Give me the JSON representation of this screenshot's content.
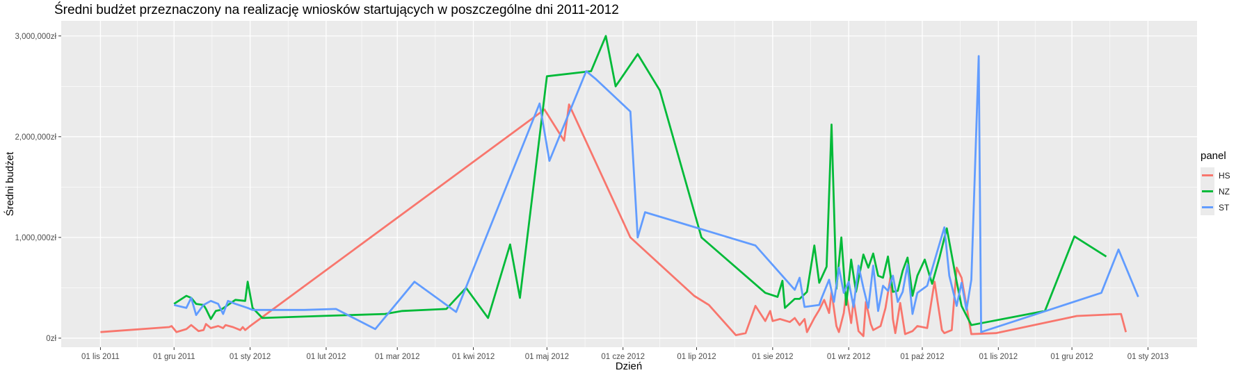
{
  "chart_data": {
    "type": "line",
    "title": "Średni budżet przeznaczony na realizację wniosków startujących w poszczególne dni 2011-2012",
    "xlabel": "Dzień",
    "ylabel": "Średni budżet",
    "ylim": [
      -90000,
      3150000
    ],
    "xlim": [
      "2011-10-16",
      "2013-01-21"
    ],
    "grid": true,
    "legend_title": "panel",
    "legend_position": "right",
    "x_ticks": [
      {
        "date": "2011-11-01",
        "label": "01 lis 2011"
      },
      {
        "date": "2011-12-01",
        "label": "01 gru 2011"
      },
      {
        "date": "2012-01-01",
        "label": "01 sty 2012"
      },
      {
        "date": "2012-02-01",
        "label": "01 lut 2012"
      },
      {
        "date": "2012-03-01",
        "label": "01 mar 2012"
      },
      {
        "date": "2012-04-01",
        "label": "01 kwi 2012"
      },
      {
        "date": "2012-05-01",
        "label": "01 maj 2012"
      },
      {
        "date": "2012-06-01",
        "label": "01 cze 2012"
      },
      {
        "date": "2012-07-01",
        "label": "01 lip 2012"
      },
      {
        "date": "2012-08-01",
        "label": "01 sie 2012"
      },
      {
        "date": "2012-09-01",
        "label": "01 wrz 2012"
      },
      {
        "date": "2012-10-01",
        "label": "01 paź 2012"
      },
      {
        "date": "2012-11-01",
        "label": "01 lis 2012"
      },
      {
        "date": "2012-12-01",
        "label": "01 gru 2012"
      },
      {
        "date": "2013-01-01",
        "label": "01 sty 2013"
      }
    ],
    "y_ticks": [
      {
        "value": 0,
        "label": "0zł"
      },
      {
        "value": 1000000,
        "label": "1,000,000zł"
      },
      {
        "value": 2000000,
        "label": "2,000,000zł"
      },
      {
        "value": 3000000,
        "label": "3,000,000zł"
      }
    ],
    "series": [
      {
        "name": "HS",
        "color": "#F8766D",
        "points": [
          [
            "2011-11-01",
            60000
          ],
          [
            "2011-11-29",
            110000
          ],
          [
            "2011-11-30",
            120000
          ],
          [
            "2011-12-02",
            60000
          ],
          [
            "2011-12-06",
            90000
          ],
          [
            "2011-12-08",
            130000
          ],
          [
            "2011-12-11",
            70000
          ],
          [
            "2011-12-13",
            80000
          ],
          [
            "2011-12-14",
            140000
          ],
          [
            "2011-12-16",
            100000
          ],
          [
            "2011-12-19",
            120000
          ],
          [
            "2011-12-21",
            100000
          ],
          [
            "2011-12-22",
            130000
          ],
          [
            "2011-12-25",
            110000
          ],
          [
            "2011-12-28",
            80000
          ],
          [
            "2011-12-29",
            110000
          ],
          [
            "2011-12-30",
            80000
          ],
          [
            "2012-01-01",
            120000
          ],
          [
            "2012-04-30",
            2270000
          ],
          [
            "2012-05-08",
            1960000
          ],
          [
            "2012-05-10",
            2320000
          ],
          [
            "2012-06-04",
            1000000
          ],
          [
            "2012-06-30",
            420000
          ],
          [
            "2012-07-06",
            330000
          ],
          [
            "2012-07-17",
            30000
          ],
          [
            "2012-07-21",
            50000
          ],
          [
            "2012-07-25",
            320000
          ],
          [
            "2012-07-29",
            170000
          ],
          [
            "2012-07-31",
            270000
          ],
          [
            "2012-08-01",
            170000
          ],
          [
            "2012-08-04",
            190000
          ],
          [
            "2012-08-08",
            160000
          ],
          [
            "2012-08-10",
            200000
          ],
          [
            "2012-08-12",
            130000
          ],
          [
            "2012-08-14",
            190000
          ],
          [
            "2012-08-15",
            60000
          ],
          [
            "2012-08-18",
            200000
          ],
          [
            "2012-08-20",
            280000
          ],
          [
            "2012-08-22",
            380000
          ],
          [
            "2012-08-24",
            250000
          ],
          [
            "2012-08-25",
            460000
          ],
          [
            "2012-08-27",
            120000
          ],
          [
            "2012-08-28",
            60000
          ],
          [
            "2012-08-30",
            250000
          ],
          [
            "2012-08-31",
            450000
          ],
          [
            "2012-09-02",
            150000
          ],
          [
            "2012-09-03",
            380000
          ],
          [
            "2012-09-05",
            70000
          ],
          [
            "2012-09-07",
            20000
          ],
          [
            "2012-09-08",
            360000
          ],
          [
            "2012-09-10",
            140000
          ],
          [
            "2012-09-11",
            80000
          ],
          [
            "2012-09-14",
            120000
          ],
          [
            "2012-09-16",
            300000
          ],
          [
            "2012-09-18",
            600000
          ],
          [
            "2012-09-19",
            190000
          ],
          [
            "2012-09-20",
            50000
          ],
          [
            "2012-09-22",
            350000
          ],
          [
            "2012-09-24",
            40000
          ],
          [
            "2012-09-27",
            70000
          ],
          [
            "2012-09-29",
            120000
          ],
          [
            "2012-10-03",
            100000
          ],
          [
            "2012-10-06",
            560000
          ],
          [
            "2012-10-09",
            80000
          ],
          [
            "2012-10-10",
            50000
          ],
          [
            "2012-10-13",
            80000
          ],
          [
            "2012-10-15",
            700000
          ],
          [
            "2012-10-17",
            600000
          ],
          [
            "2012-10-21",
            40000
          ],
          [
            "2012-10-31",
            50000
          ],
          [
            "2012-12-03",
            220000
          ],
          [
            "2012-12-21",
            240000
          ],
          [
            "2012-12-23",
            60000
          ]
        ]
      },
      {
        "name": "NZ",
        "color": "#00BA38",
        "points": [
          [
            "2011-12-01",
            340000
          ],
          [
            "2011-12-06",
            420000
          ],
          [
            "2011-12-08",
            400000
          ],
          [
            "2011-12-10",
            340000
          ],
          [
            "2011-12-13",
            330000
          ],
          [
            "2011-12-14",
            290000
          ],
          [
            "2011-12-16",
            190000
          ],
          [
            "2011-12-18",
            270000
          ],
          [
            "2011-12-20",
            280000
          ],
          [
            "2011-12-23",
            330000
          ],
          [
            "2011-12-26",
            380000
          ],
          [
            "2011-12-30",
            370000
          ],
          [
            "2011-12-31",
            560000
          ],
          [
            "2012-01-02",
            300000
          ],
          [
            "2012-01-06",
            200000
          ],
          [
            "2012-01-30",
            220000
          ],
          [
            "2012-02-25",
            240000
          ],
          [
            "2012-03-03",
            270000
          ],
          [
            "2012-03-21",
            290000
          ],
          [
            "2012-03-29",
            500000
          ],
          [
            "2012-04-07",
            200000
          ],
          [
            "2012-04-16",
            930000
          ],
          [
            "2012-04-20",
            400000
          ],
          [
            "2012-05-01",
            2600000
          ],
          [
            "2012-05-19",
            2650000
          ],
          [
            "2012-05-25",
            3000000
          ],
          [
            "2012-05-29",
            2500000
          ],
          [
            "2012-06-07",
            2820000
          ],
          [
            "2012-06-16",
            2460000
          ],
          [
            "2012-07-03",
            1000000
          ],
          [
            "2012-07-29",
            450000
          ],
          [
            "2012-08-03",
            410000
          ],
          [
            "2012-08-05",
            570000
          ],
          [
            "2012-08-06",
            300000
          ],
          [
            "2012-08-10",
            390000
          ],
          [
            "2012-08-12",
            390000
          ],
          [
            "2012-08-15",
            460000
          ],
          [
            "2012-08-18",
            920000
          ],
          [
            "2012-08-20",
            550000
          ],
          [
            "2012-08-23",
            710000
          ],
          [
            "2012-08-25",
            2120000
          ],
          [
            "2012-08-27",
            490000
          ],
          [
            "2012-08-29",
            1000000
          ],
          [
            "2012-08-31",
            330000
          ],
          [
            "2012-09-02",
            780000
          ],
          [
            "2012-09-04",
            460000
          ],
          [
            "2012-09-07",
            830000
          ],
          [
            "2012-09-09",
            700000
          ],
          [
            "2012-09-11",
            840000
          ],
          [
            "2012-09-13",
            620000
          ],
          [
            "2012-09-15",
            600000
          ],
          [
            "2012-09-17",
            810000
          ],
          [
            "2012-09-19",
            460000
          ],
          [
            "2012-09-21",
            470000
          ],
          [
            "2012-09-23",
            670000
          ],
          [
            "2012-09-25",
            800000
          ],
          [
            "2012-09-27",
            420000
          ],
          [
            "2012-09-29",
            620000
          ],
          [
            "2012-10-02",
            780000
          ],
          [
            "2012-10-05",
            540000
          ],
          [
            "2012-10-08",
            800000
          ],
          [
            "2012-10-11",
            1090000
          ],
          [
            "2012-10-15",
            560000
          ],
          [
            "2012-10-17",
            320000
          ],
          [
            "2012-10-21",
            130000
          ],
          [
            "2012-11-20",
            270000
          ],
          [
            "2012-12-02",
            1010000
          ],
          [
            "2012-12-15",
            810000
          ]
        ]
      },
      {
        "name": "ST",
        "color": "#619CFF",
        "points": [
          [
            "2011-12-01",
            330000
          ],
          [
            "2011-12-06",
            300000
          ],
          [
            "2011-12-08",
            400000
          ],
          [
            "2011-12-10",
            230000
          ],
          [
            "2011-12-13",
            330000
          ],
          [
            "2011-12-16",
            370000
          ],
          [
            "2011-12-19",
            340000
          ],
          [
            "2011-12-21",
            240000
          ],
          [
            "2011-12-23",
            370000
          ],
          [
            "2011-12-26",
            340000
          ],
          [
            "2011-12-31",
            300000
          ],
          [
            "2012-01-02",
            280000
          ],
          [
            "2012-01-23",
            280000
          ],
          [
            "2012-02-05",
            290000
          ],
          [
            "2012-02-21",
            90000
          ],
          [
            "2012-03-08",
            560000
          ],
          [
            "2012-03-25",
            260000
          ],
          [
            "2012-04-28",
            2330000
          ],
          [
            "2012-05-02",
            1760000
          ],
          [
            "2012-05-17",
            2650000
          ],
          [
            "2012-05-21",
            2570000
          ],
          [
            "2012-06-04",
            2250000
          ],
          [
            "2012-06-07",
            1000000
          ],
          [
            "2012-06-10",
            1250000
          ],
          [
            "2012-07-25",
            920000
          ],
          [
            "2012-08-10",
            480000
          ],
          [
            "2012-08-12",
            600000
          ],
          [
            "2012-08-14",
            310000
          ],
          [
            "2012-08-20",
            330000
          ],
          [
            "2012-08-21",
            400000
          ],
          [
            "2012-08-24",
            580000
          ],
          [
            "2012-08-26",
            360000
          ],
          [
            "2012-08-28",
            700000
          ],
          [
            "2012-08-30",
            450000
          ],
          [
            "2012-09-01",
            560000
          ],
          [
            "2012-09-03",
            310000
          ],
          [
            "2012-09-05",
            720000
          ],
          [
            "2012-09-07",
            500000
          ],
          [
            "2012-09-09",
            300000
          ],
          [
            "2012-09-11",
            720000
          ],
          [
            "2012-09-13",
            270000
          ],
          [
            "2012-09-15",
            520000
          ],
          [
            "2012-09-17",
            470000
          ],
          [
            "2012-09-19",
            620000
          ],
          [
            "2012-09-21",
            360000
          ],
          [
            "2012-09-23",
            460000
          ],
          [
            "2012-09-25",
            730000
          ],
          [
            "2012-09-27",
            240000
          ],
          [
            "2012-09-29",
            450000
          ],
          [
            "2012-10-03",
            520000
          ],
          [
            "2012-10-10",
            1100000
          ],
          [
            "2012-10-12",
            620000
          ],
          [
            "2012-10-15",
            320000
          ],
          [
            "2012-10-17",
            550000
          ],
          [
            "2012-10-19",
            280000
          ],
          [
            "2012-10-21",
            580000
          ],
          [
            "2012-10-24",
            2800000
          ],
          [
            "2012-10-25",
            60000
          ],
          [
            "2012-12-13",
            450000
          ],
          [
            "2012-12-20",
            880000
          ],
          [
            "2012-12-28",
            410000
          ]
        ]
      }
    ]
  }
}
